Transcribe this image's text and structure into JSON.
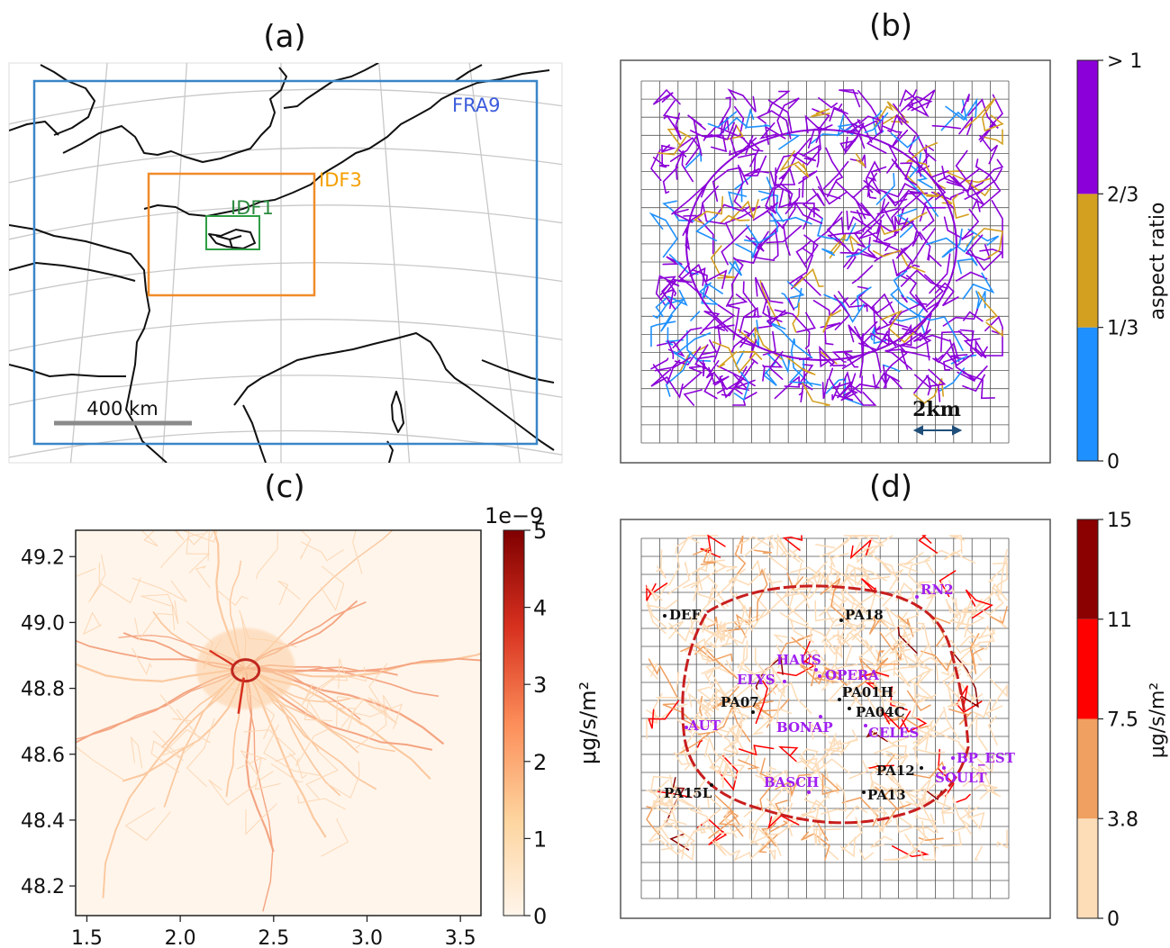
{
  "panels": {
    "a": {
      "label": "(a)",
      "domains": [
        {
          "name": "FRA9",
          "color": "#3b5bdb"
        },
        {
          "name": "IDF3",
          "color": "#f59f00"
        },
        {
          "name": "IDF1",
          "color": "#2b8a3e"
        }
      ],
      "scalebar": "400 km",
      "colors": {
        "fra9_box": "#3a86c8",
        "idf3_box": "#f08c2a",
        "idf1_box": "#2f9e44",
        "coast": "#111111",
        "graticule": "#c8c8c8"
      }
    },
    "b": {
      "label": "(b)",
      "scalebar": "2km",
      "colorbar": {
        "label": "aspect ratio",
        "ticks": [
          "0",
          "1/3",
          "2/3",
          "> 1"
        ],
        "colors": [
          "#1e90ff",
          "#d4a020",
          "#8b00d8"
        ]
      }
    },
    "c": {
      "label": "(c)",
      "colorbar": {
        "label": "μg/s/m²",
        "offset": "1e−9",
        "ticks": [
          "0",
          "1",
          "2",
          "3",
          "4",
          "5"
        ],
        "cmap": "OrRd"
      }
    },
    "d": {
      "label": "(d)",
      "colorbar": {
        "label": "μg/s/m²",
        "ticks": [
          "0",
          "3.8",
          "7.5",
          "11",
          "15"
        ],
        "colors": [
          "#fddcb8",
          "#f0a060",
          "#ff0000",
          "#8b0000"
        ]
      },
      "stations": [
        {
          "name": "RN2",
          "type": "traffic",
          "dot": [
            1018,
            663
          ],
          "tx": 1022,
          "ty": 660
        },
        {
          "name": "DEF",
          "type": "background",
          "dot": [
            738,
            684
          ],
          "tx": 743,
          "ty": 688
        },
        {
          "name": "PA18",
          "type": "background",
          "dot": [
            934,
            689
          ],
          "tx": 938,
          "ty": 688
        },
        {
          "name": "HAUS",
          "type": "traffic",
          "dot": [
            906,
            744
          ],
          "tx": 862,
          "ty": 738
        },
        {
          "name": "OPERA",
          "type": "traffic",
          "dot": [
            910,
            751
          ],
          "tx": 916,
          "ty": 755
        },
        {
          "name": "ELYS",
          "type": "traffic",
          "dot": [
            871,
            757
          ],
          "tx": 818,
          "ty": 760
        },
        {
          "name": "PA01H",
          "type": "background",
          "dot": [
            932,
            777
          ],
          "tx": 935,
          "ty": 774
        },
        {
          "name": "PA07",
          "type": "background",
          "dot": [
            836,
            791
          ],
          "tx": 800,
          "ty": 785
        },
        {
          "name": "PA04C",
          "type": "background",
          "dot": [
            943,
            787
          ],
          "tx": 950,
          "ty": 796
        },
        {
          "name": "BONAP",
          "type": "traffic",
          "dot": [
            911,
            796
          ],
          "tx": 862,
          "ty": 813
        },
        {
          "name": "AUT",
          "type": "traffic",
          "dot": [
            762,
            808
          ],
          "tx": 764,
          "ty": 811
        },
        {
          "name": "CELES",
          "type": "traffic",
          "dot": [
            961,
            806
          ],
          "tx": 964,
          "ty": 819
        },
        {
          "name": "BP_EST",
          "type": "traffic",
          "dot": [
            1058,
            842
          ],
          "tx": 1062,
          "ty": 847
        },
        {
          "name": "PA12",
          "type": "background",
          "dot": [
            1023,
            853
          ],
          "tx": 973,
          "ty": 861
        },
        {
          "name": "SOULT",
          "type": "traffic",
          "dot": [
            1048,
            853
          ],
          "tx": 1038,
          "ty": 869
        },
        {
          "name": "BASCH",
          "type": "traffic",
          "dot": [
            898,
            880
          ],
          "tx": 848,
          "ty": 874
        },
        {
          "name": "PA15L",
          "type": "background",
          "dot": [
            790,
            872
          ],
          "tx": 737,
          "ty": 886
        },
        {
          "name": "PA13",
          "type": "background",
          "dot": [
            959,
            880
          ],
          "tx": 963,
          "ty": 888
        }
      ],
      "station_colors": {
        "traffic": "#a020f0",
        "background": "#111111"
      }
    }
  },
  "chart_data": [
    {
      "type": "map",
      "panel": "(a)",
      "series": [
        {
          "name": "FRA9"
        },
        {
          "name": "IDF3"
        },
        {
          "name": "IDF1"
        }
      ],
      "annotations": [
        "400 km"
      ]
    },
    {
      "type": "network",
      "panel": "(b)",
      "colorbar": {
        "label": "aspect ratio",
        "ticks": [
          "0",
          "1/3",
          "2/3",
          "> 1"
        ],
        "bounds": [
          0,
          0.3333,
          0.6667,
          1
        ]
      },
      "annotations": [
        "2km"
      ]
    },
    {
      "type": "heatmap",
      "panel": "(c)",
      "xticks": [
        1.5,
        2.0,
        2.5,
        3.0,
        3.5
      ],
      "yticks": [
        48.2,
        48.4,
        48.6,
        48.8,
        49.0,
        49.2
      ],
      "xlim": [
        1.44,
        3.61
      ],
      "ylim": [
        48.11,
        49.28
      ],
      "center": [
        2.35,
        48.86
      ],
      "colorbar": {
        "label": "μg/s/m²",
        "offset": "1e−9",
        "range": [
          0,
          5
        ],
        "ticks": [
          0,
          1,
          2,
          3,
          4,
          5
        ]
      }
    },
    {
      "type": "network",
      "panel": "(d)",
      "colorbar": {
        "label": "μg/s/m²",
        "bounds": [
          0,
          3.8,
          7.5,
          11,
          15
        ]
      },
      "stations": [
        "RN2",
        "DEF",
        "PA18",
        "HAUS",
        "OPERA",
        "ELYS",
        "PA01H",
        "PA07",
        "PA04C",
        "BONAP",
        "AUT",
        "CELES",
        "BP_EST",
        "PA12",
        "SOULT",
        "BASCH",
        "PA15L",
        "PA13"
      ]
    }
  ]
}
